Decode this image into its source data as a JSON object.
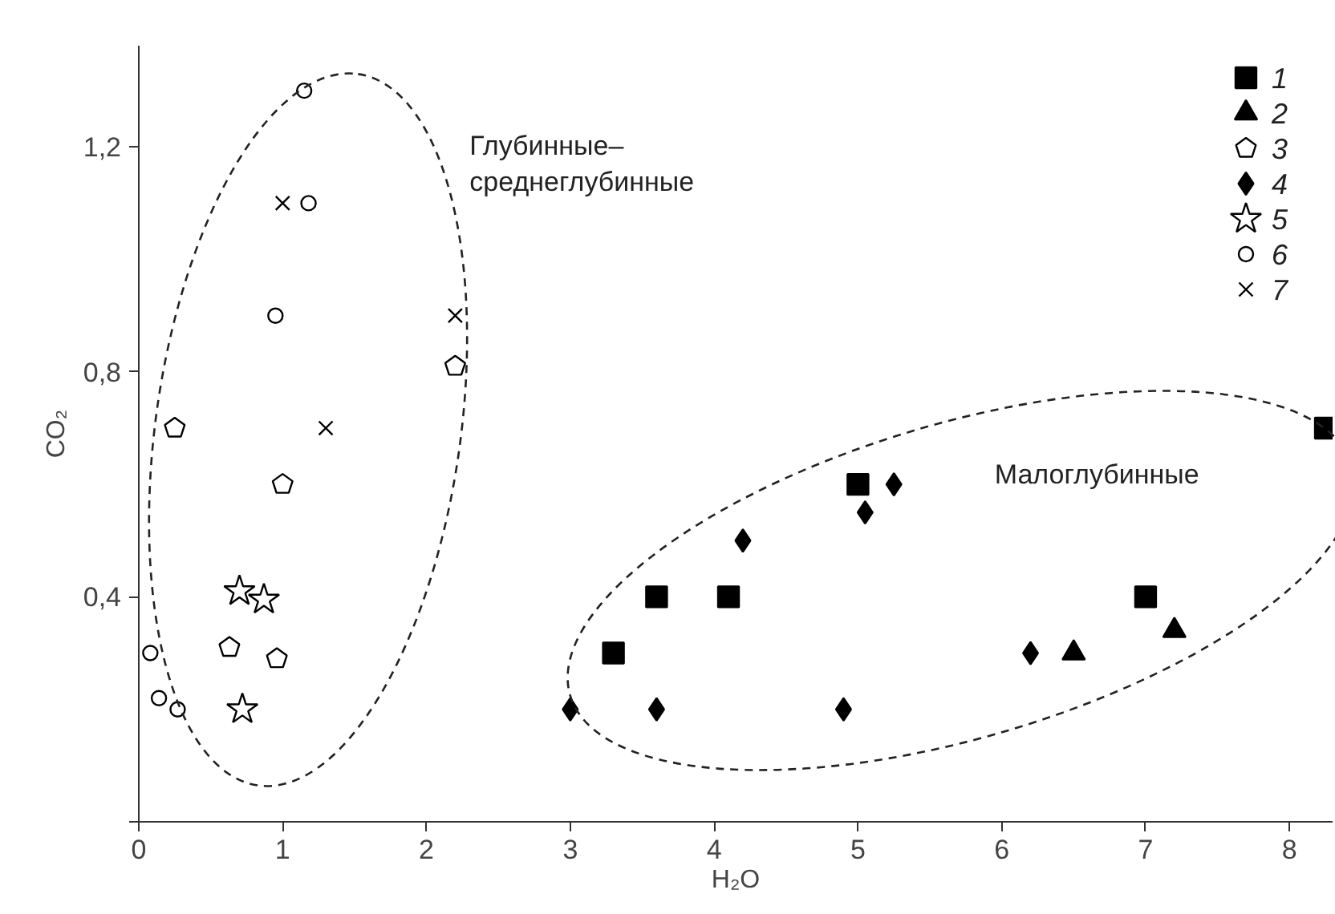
{
  "chart_data": {
    "type": "scatter",
    "xlabel": "H₂O",
    "ylabel": "CO₂",
    "xlim": [
      0,
      8.3
    ],
    "ylim": [
      0,
      1.38
    ],
    "xticks": [
      0,
      1,
      2,
      3,
      4,
      5,
      6,
      7,
      8
    ],
    "yticks": [
      {
        "value": 0,
        "label": null
      },
      {
        "value": 0.4,
        "label": "0,4"
      },
      {
        "value": 0.8,
        "label": "0,8"
      },
      {
        "value": 1.2,
        "label": "1,2"
      }
    ],
    "grid": false,
    "legend": "top right",
    "annotations": [
      "Глубинные–\nсреднеглубинные",
      "Малоглубинные"
    ],
    "series": [
      {
        "name": "1",
        "color": "#000000",
        "marker": "square",
        "x": [
          3.3,
          3.6,
          4.1,
          5.0,
          7.0,
          8.25
        ],
        "values": [
          0.3,
          0.4,
          0.4,
          0.6,
          0.4,
          0.7
        ]
      },
      {
        "name": "2",
        "color": "#000000",
        "marker": "triangle",
        "x": [
          6.5,
          7.2
        ],
        "values": [
          0.3,
          0.34
        ]
      },
      {
        "name": "3",
        "color": "#000000",
        "x": [
          2.2,
          0.25,
          1.0,
          0.63,
          0.96
        ],
        "values": [
          0.81,
          0.7,
          0.6,
          0.31,
          0.29
        ]
      },
      {
        "name": "4",
        "color": "#000000",
        "marker": "diamond",
        "x": [
          3.0,
          3.6,
          4.9,
          4.2,
          5.05,
          5.25,
          6.2
        ],
        "values": [
          0.2,
          0.2,
          0.2,
          0.5,
          0.55,
          0.6,
          0.3
        ]
      },
      {
        "name": "5",
        "color": "#000000",
        "marker": "star",
        "x": [
          0.7,
          0.87,
          0.72
        ],
        "values": [
          0.41,
          0.395,
          0.2
        ]
      },
      {
        "name": "6",
        "color": "#000000",
        "marker": "circle",
        "x": [
          1.15,
          1.18,
          0.95,
          0.08,
          0.14,
          0.27
        ],
        "values": [
          1.3,
          1.1,
          0.9,
          0.3,
          0.22,
          0.2
        ]
      },
      {
        "name": "7",
        "color": "#000000",
        "marker": "cross",
        "x": [
          1.0,
          2.2,
          1.3
        ],
        "values": [
          1.1,
          0.9,
          0.7
        ]
      }
    ]
  }
}
